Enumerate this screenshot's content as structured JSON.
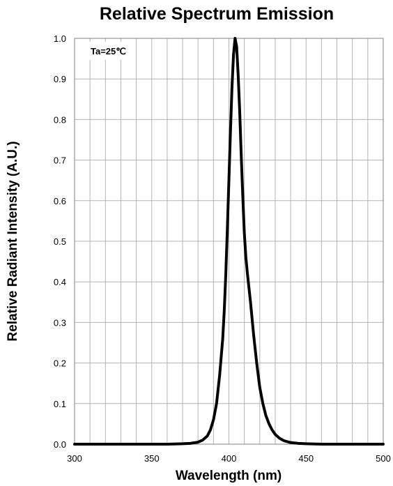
{
  "chart_data": {
    "type": "line",
    "title": "Relative Spectrum Emission",
    "xlabel": "Wavelength (nm)",
    "ylabel": "Relative Radiant Intensity (A.U.)",
    "annotation": "Ta=25℃",
    "xlim": [
      300,
      500
    ],
    "ylim": [
      0,
      1
    ],
    "x_ticks": [
      "300",
      "350",
      "400",
      "450",
      "500"
    ],
    "y_ticks": [
      "0.0",
      "0.1",
      "0.2",
      "0.3",
      "0.4",
      "0.5",
      "0.6",
      "0.7",
      "0.8",
      "0.9",
      "1.0"
    ],
    "grid": true,
    "colors": {
      "line": "#000000",
      "grid": "#b3b3b3",
      "axis": "#808080"
    },
    "series": [
      {
        "x": [
          300,
          360,
          370,
          375,
          380,
          383,
          386,
          388,
          390,
          392,
          394,
          396,
          397,
          398,
          399,
          400,
          401,
          402,
          403,
          404,
          405,
          406,
          407,
          408,
          409,
          410,
          411,
          412,
          414,
          416,
          418,
          420,
          422,
          424,
          426,
          428,
          430,
          433,
          436,
          440,
          445,
          450,
          460,
          500
        ],
        "y": [
          0.0,
          0.0,
          0.001,
          0.002,
          0.005,
          0.01,
          0.02,
          0.035,
          0.06,
          0.1,
          0.17,
          0.26,
          0.33,
          0.42,
          0.53,
          0.65,
          0.77,
          0.88,
          0.96,
          1.0,
          0.98,
          0.91,
          0.82,
          0.71,
          0.61,
          0.52,
          0.46,
          0.42,
          0.35,
          0.27,
          0.2,
          0.14,
          0.1,
          0.07,
          0.05,
          0.035,
          0.024,
          0.014,
          0.008,
          0.004,
          0.002,
          0.001,
          0.0,
          0.0
        ]
      }
    ]
  }
}
